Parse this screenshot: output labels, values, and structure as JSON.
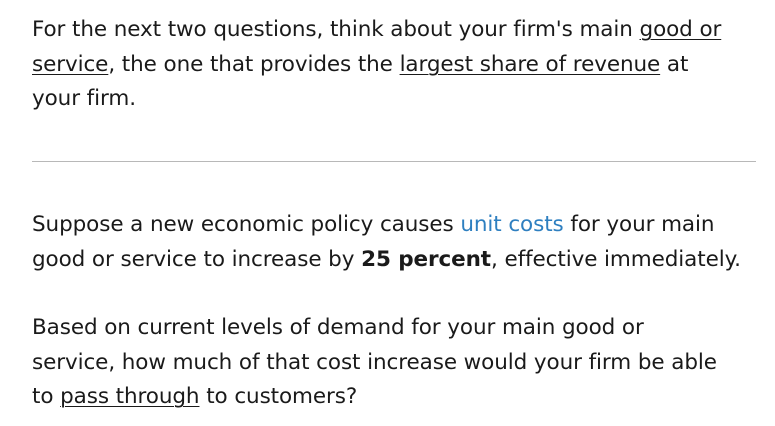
{
  "intro": {
    "text_1": "For the next two questions, think about your firm's main ",
    "underline_1": "good or service",
    "text_2": ", the one that provides the ",
    "underline_2": "largest share of revenue",
    "text_3": " at your firm."
  },
  "policy": {
    "text_1": "Suppose a new economic policy causes ",
    "link": "unit costs",
    "text_2": " for your main good or service to increase by ",
    "bold": "25 percent",
    "text_3": ", effective immediately."
  },
  "question": {
    "text_1": "Based on current levels of demand for your main good or service, how much of that cost increase would your firm be able to ",
    "underline": "pass through",
    "text_2": " to customers?"
  },
  "colors": {
    "link": "#2e7fc0",
    "text": "#1a1a1a",
    "divider": "#b8b8b8"
  }
}
